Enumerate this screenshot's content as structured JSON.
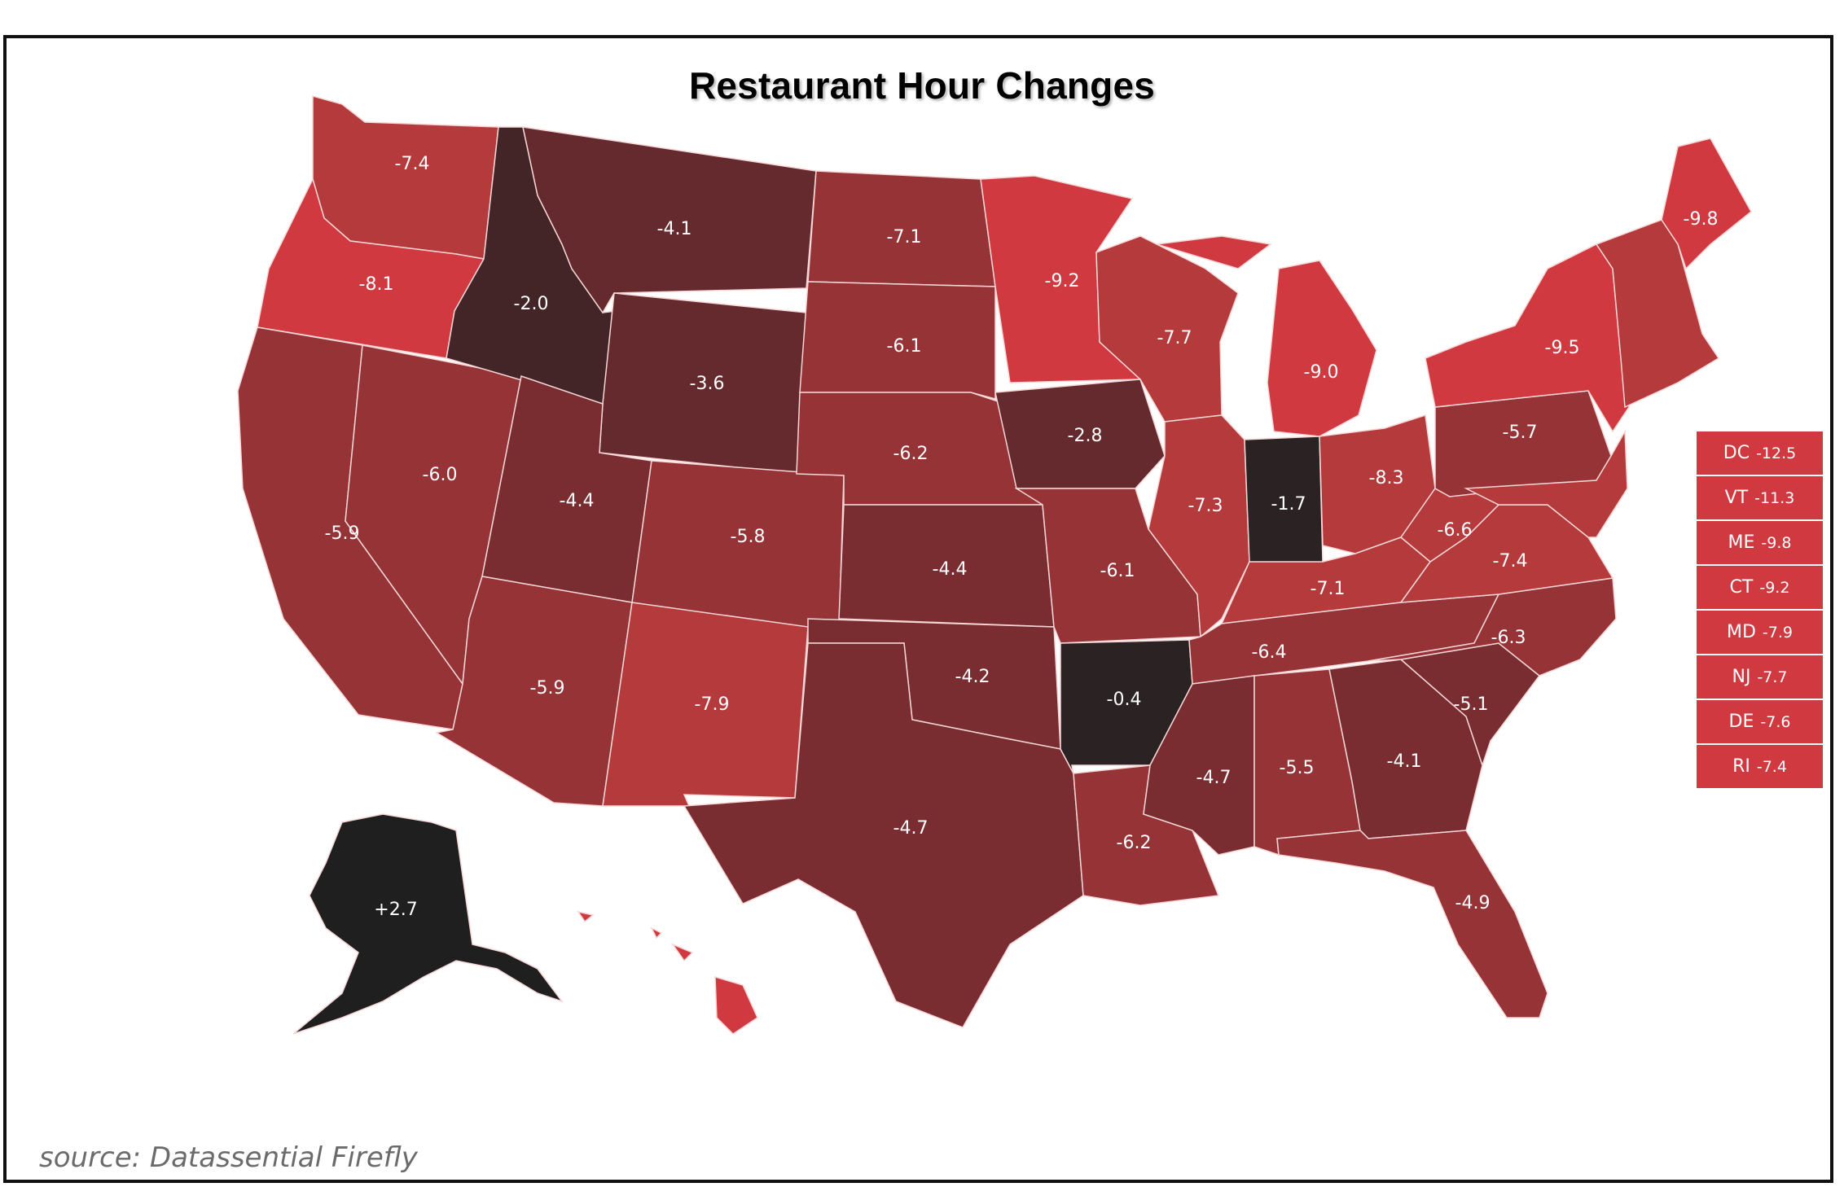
{
  "title": "Restaurant Hour Changes",
  "source": "source: Datassential Firefly",
  "colors": {
    "c1": "#d0393f",
    "c2": "#b43a3c",
    "c3": "#953336",
    "c4": "#7a2d31",
    "c5": "#652a2d",
    "c6": "#432527",
    "c7": "#2b2223",
    "c8": "#1f1f1f"
  },
  "states": [
    {
      "id": "WA",
      "label": "-7.4"
    },
    {
      "id": "OR",
      "label": "-8.1"
    },
    {
      "id": "CA",
      "label": "-5.9"
    },
    {
      "id": "NV",
      "label": "-6.0"
    },
    {
      "id": "ID",
      "label": "-2.0"
    },
    {
      "id": "MT",
      "label": "-4.1"
    },
    {
      "id": "WY",
      "label": "-3.6"
    },
    {
      "id": "UT",
      "label": "-4.4"
    },
    {
      "id": "AZ",
      "label": "-5.9"
    },
    {
      "id": "CO",
      "label": "-5.8"
    },
    {
      "id": "NM",
      "label": "-7.9"
    },
    {
      "id": "ND",
      "label": "-7.1"
    },
    {
      "id": "SD",
      "label": "-6.1"
    },
    {
      "id": "NE",
      "label": "-6.2"
    },
    {
      "id": "KS",
      "label": "-4.4"
    },
    {
      "id": "OK",
      "label": "-4.2"
    },
    {
      "id": "TX",
      "label": "-4.7"
    },
    {
      "id": "MN",
      "label": "-9.2"
    },
    {
      "id": "IA",
      "label": "-2.8"
    },
    {
      "id": "MO",
      "label": "-6.1"
    },
    {
      "id": "AR",
      "label": "-0.4"
    },
    {
      "id": "LA",
      "label": "-6.2"
    },
    {
      "id": "WI",
      "label": "-7.7"
    },
    {
      "id": "IL",
      "label": "-7.3"
    },
    {
      "id": "MI",
      "label": "-9.0"
    },
    {
      "id": "IN",
      "label": "-1.7"
    },
    {
      "id": "OH",
      "label": "-8.3"
    },
    {
      "id": "KY",
      "label": "-7.1"
    },
    {
      "id": "TN",
      "label": "-6.4"
    },
    {
      "id": "MS",
      "label": "-4.7"
    },
    {
      "id": "AL",
      "label": "-5.5"
    },
    {
      "id": "GA",
      "label": "-4.1"
    },
    {
      "id": "FL",
      "label": "-4.9"
    },
    {
      "id": "SC",
      "label": "-5.1"
    },
    {
      "id": "NC",
      "label": "-6.3"
    },
    {
      "id": "VA",
      "label": "-7.4"
    },
    {
      "id": "WV",
      "label": "-6.6"
    },
    {
      "id": "PA",
      "label": "-5.7"
    },
    {
      "id": "NY",
      "label": "-9.5"
    },
    {
      "id": "ME",
      "label": "-9.8"
    },
    {
      "id": "AK",
      "label": "+2.7"
    }
  ],
  "legend": [
    {
      "abbr": "DC",
      "value": "-12.5"
    },
    {
      "abbr": "VT",
      "value": "-11.3"
    },
    {
      "abbr": "ME",
      "value": "-9.8"
    },
    {
      "abbr": "CT",
      "value": "-9.2"
    },
    {
      "abbr": "MD",
      "value": "-7.9"
    },
    {
      "abbr": "NJ",
      "value": "-7.7"
    },
    {
      "abbr": "DE",
      "value": "-7.6"
    },
    {
      "abbr": "RI",
      "value": "-7.4"
    }
  ]
}
